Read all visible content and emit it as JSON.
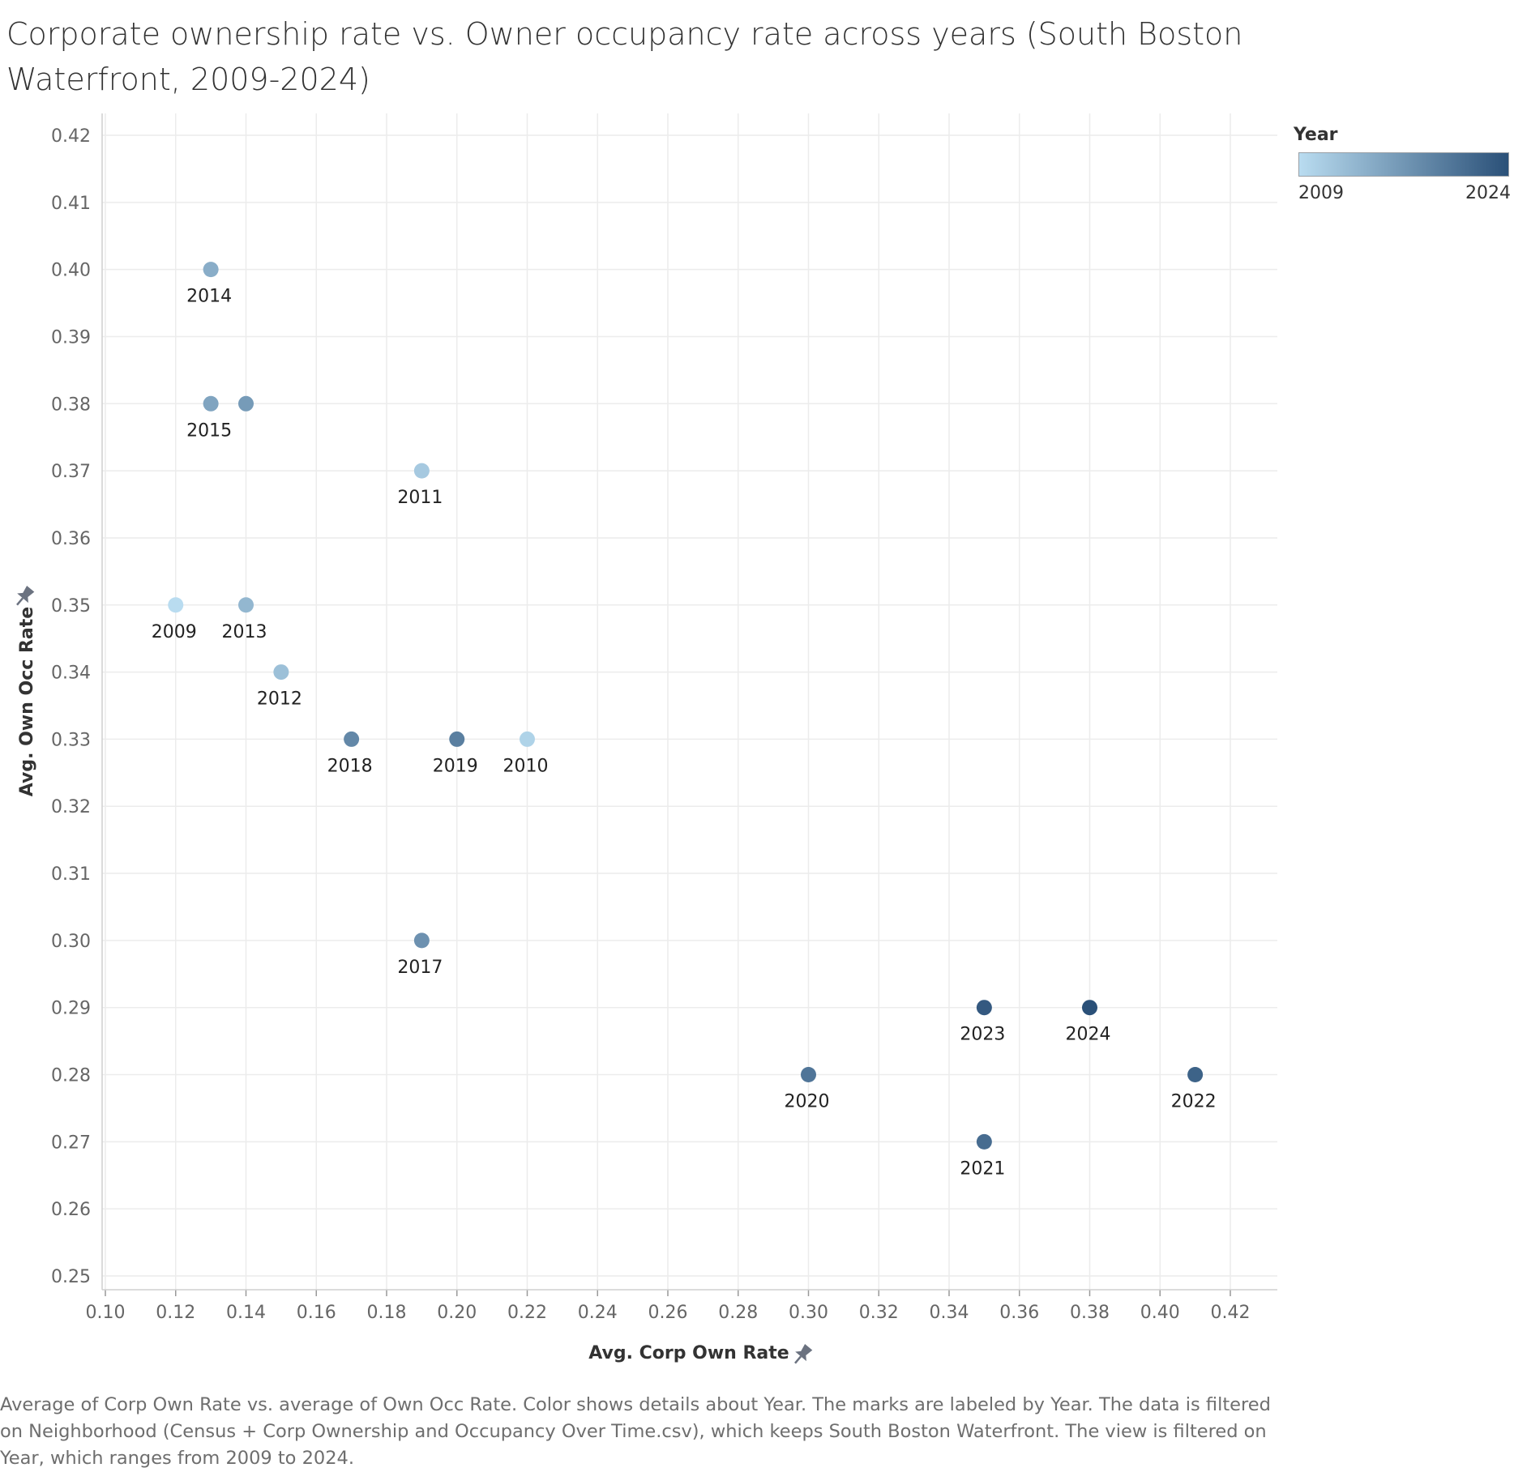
{
  "chart_data": {
    "type": "scatter",
    "title": "Corporate ownership rate vs. Owner occupancy rate across years (South Boston Waterfront, 2009-2024)",
    "xlabel": "Avg. Corp Own Rate",
    "ylabel": "Avg. Own Occ Rate",
    "xlim": [
      0.1,
      0.42
    ],
    "ylim": [
      0.25,
      0.42
    ],
    "x_ticks": [
      "0.10",
      "0.12",
      "0.14",
      "0.16",
      "0.18",
      "0.20",
      "0.22",
      "0.24",
      "0.26",
      "0.28",
      "0.30",
      "0.32",
      "0.34",
      "0.36",
      "0.38",
      "0.40",
      "0.42"
    ],
    "y_ticks": [
      "0.42",
      "0.41",
      "0.40",
      "0.39",
      "0.38",
      "0.37",
      "0.36",
      "0.35",
      "0.34",
      "0.33",
      "0.32",
      "0.31",
      "0.30",
      "0.29",
      "0.28",
      "0.27",
      "0.26",
      "0.25"
    ],
    "grid": true,
    "legend": {
      "title": "Year",
      "min_label": "2009",
      "max_label": "2024",
      "color_min": "#b9dcf0",
      "color_max": "#2a5078",
      "placement": "top-right"
    },
    "points": [
      {
        "year": "2009",
        "x": 0.12,
        "y": 0.35,
        "label": "2009"
      },
      {
        "year": "2010",
        "x": 0.22,
        "y": 0.33,
        "label": "2010"
      },
      {
        "year": "2011",
        "x": 0.19,
        "y": 0.37,
        "label": "2011"
      },
      {
        "year": "2012",
        "x": 0.15,
        "y": 0.34,
        "label": "2012"
      },
      {
        "year": "2013",
        "x": 0.14,
        "y": 0.35,
        "label": "2013"
      },
      {
        "year": "2014",
        "x": 0.13,
        "y": 0.4,
        "label": "2014"
      },
      {
        "year": "2015",
        "x": 0.13,
        "y": 0.38,
        "label": "2015"
      },
      {
        "year": "2016",
        "x": 0.14,
        "y": 0.38,
        "label": ""
      },
      {
        "year": "2017",
        "x": 0.19,
        "y": 0.3,
        "label": "2017"
      },
      {
        "year": "2018",
        "x": 0.17,
        "y": 0.33,
        "label": "2018"
      },
      {
        "year": "2019",
        "x": 0.2,
        "y": 0.33,
        "label": "2019"
      },
      {
        "year": "2020",
        "x": 0.3,
        "y": 0.28,
        "label": "2020"
      },
      {
        "year": "2021",
        "x": 0.35,
        "y": 0.27,
        "label": "2021"
      },
      {
        "year": "2022",
        "x": 0.41,
        "y": 0.28,
        "label": "2022"
      },
      {
        "year": "2023",
        "x": 0.35,
        "y": 0.29,
        "label": "2023"
      },
      {
        "year": "2024",
        "x": 0.38,
        "y": 0.29,
        "label": "2024"
      }
    ]
  },
  "caption": "Average of Corp Own Rate vs. average of Own Occ Rate.  Color shows details about Year.  The marks are labeled by Year. The data is filtered on Neighborhood (Census + Corp Ownership and Occupancy Over Time.csv), which keeps South Boston Waterfront. The view is filtered on Year, which ranges from 2009 to 2024."
}
